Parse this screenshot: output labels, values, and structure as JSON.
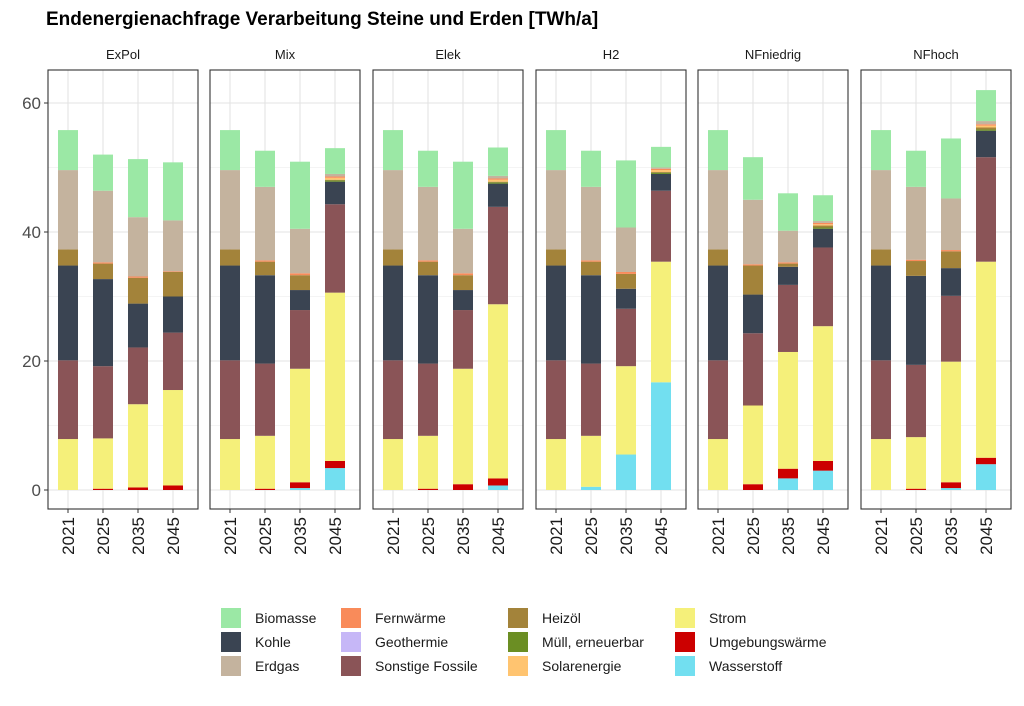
{
  "chart_data": {
    "type": "bar",
    "title": "Endenergienachfrage Verarbeitung Steine und Erden [TWh/a]",
    "subtitle": "",
    "xlabel": "",
    "ylabel": "",
    "ylim": [
      0,
      65
    ],
    "yticks": [
      0,
      20,
      40,
      60
    ],
    "grid": true,
    "stacked": true,
    "legend_position": "bottom",
    "categories": [
      "2021",
      "2025",
      "2035",
      "2045"
    ],
    "legend": {
      "items": [
        {
          "name": "Biomasse",
          "color": "#9be8a5"
        },
        {
          "name": "Kohle",
          "color": "#3a4452"
        },
        {
          "name": "Erdgas",
          "color": "#c4b39e"
        },
        {
          "name": "Fernwärme",
          "color": "#f98b5a"
        },
        {
          "name": "Geothermie",
          "color": "#c6b7f7"
        },
        {
          "name": "Sonstige Fossile",
          "color": "#8a5457"
        },
        {
          "name": "Heizöl",
          "color": "#a3833a"
        },
        {
          "name": "Müll, erneuerbar",
          "color": "#6b8e23"
        },
        {
          "name": "Solarenergie",
          "color": "#ffc470"
        },
        {
          "name": "Strom",
          "color": "#f5f07a"
        },
        {
          "name": "Umgebungswärme",
          "color": "#cc0000"
        },
        {
          "name": "Wasserstoff",
          "color": "#72dff0"
        }
      ]
    },
    "stack_order": [
      "Wasserstoff",
      "Umgebungswärme",
      "Strom",
      "Sonstige Fossile",
      "Kohle",
      "Müll, erneuerbar",
      "Heizöl",
      "Solarenergie",
      "Geothermie",
      "Fernwärme",
      "Erdgas",
      "Biomasse"
    ],
    "panels": [
      {
        "name": "ExPol",
        "bars": [
          {
            "Strom": 7.9,
            "Sonstige Fossile": 12.2,
            "Kohle": 14.7,
            "Heizöl": 2.5,
            "Erdgas": 12.3,
            "Biomasse": 6.2
          },
          {
            "Umgebungswärme": 0.2,
            "Strom": 7.8,
            "Sonstige Fossile": 11.2,
            "Kohle": 13.5,
            "Heizöl": 2.4,
            "Fernwärme": 0.2,
            "Erdgas": 11.1,
            "Biomasse": 5.6
          },
          {
            "Umgebungswärme": 0.4,
            "Strom": 12.9,
            "Sonstige Fossile": 8.8,
            "Kohle": 6.8,
            "Heizöl": 4.0,
            "Fernwärme": 0.2,
            "Erdgas": 9.2,
            "Biomasse": 9.0
          },
          {
            "Umgebungswärme": 0.7,
            "Strom": 14.8,
            "Sonstige Fossile": 8.9,
            "Kohle": 5.6,
            "Heizöl": 3.8,
            "Fernwärme": 0.1,
            "Erdgas": 7.9,
            "Biomasse": 9.0
          }
        ]
      },
      {
        "name": "Mix",
        "bars": [
          {
            "Strom": 7.9,
            "Sonstige Fossile": 12.2,
            "Kohle": 14.7,
            "Heizöl": 2.5,
            "Erdgas": 12.3,
            "Biomasse": 6.2
          },
          {
            "Umgebungswärme": 0.2,
            "Strom": 8.2,
            "Sonstige Fossile": 11.2,
            "Kohle": 13.7,
            "Heizöl": 2.1,
            "Fernwärme": 0.2,
            "Erdgas": 11.4,
            "Biomasse": 5.6
          },
          {
            "Wasserstoff": 0.3,
            "Umgebungswärme": 0.9,
            "Strom": 17.6,
            "Sonstige Fossile": 9.1,
            "Kohle": 3.1,
            "Heizöl": 2.3,
            "Fernwärme": 0.3,
            "Erdgas": 6.9,
            "Biomasse": 10.4
          },
          {
            "Wasserstoff": 3.4,
            "Umgebungswärme": 1.1,
            "Strom": 26.1,
            "Sonstige Fossile": 13.7,
            "Kohle": 3.5,
            "Müll, erneuerbar": 0.2,
            "Heizöl": 0.1,
            "Solarenergie": 0.3,
            "Fernwärme": 0.2,
            "Erdgas": 0.4,
            "Biomasse": 4.0
          }
        ]
      },
      {
        "name": "Elek",
        "bars": [
          {
            "Strom": 7.9,
            "Sonstige Fossile": 12.2,
            "Kohle": 14.7,
            "Heizöl": 2.5,
            "Erdgas": 12.3,
            "Biomasse": 6.2
          },
          {
            "Umgebungswärme": 0.2,
            "Strom": 8.2,
            "Sonstige Fossile": 11.2,
            "Kohle": 13.7,
            "Heizöl": 2.1,
            "Fernwärme": 0.2,
            "Erdgas": 11.4,
            "Biomasse": 5.6
          },
          {
            "Umgebungswärme": 0.9,
            "Strom": 17.9,
            "Sonstige Fossile": 9.1,
            "Kohle": 3.1,
            "Heizöl": 2.3,
            "Fernwärme": 0.3,
            "Erdgas": 6.9,
            "Biomasse": 10.4
          },
          {
            "Wasserstoff": 0.7,
            "Umgebungswärme": 1.1,
            "Strom": 27.0,
            "Sonstige Fossile": 15.1,
            "Kohle": 3.6,
            "Müll, erneuerbar": 0.2,
            "Heizöl": 0.1,
            "Solarenergie": 0.3,
            "Fernwärme": 0.2,
            "Erdgas": 0.4,
            "Biomasse": 4.4
          }
        ]
      },
      {
        "name": "H2",
        "bars": [
          {
            "Strom": 7.9,
            "Sonstige Fossile": 12.2,
            "Kohle": 14.7,
            "Heizöl": 2.5,
            "Erdgas": 12.3,
            "Biomasse": 6.2
          },
          {
            "Wasserstoff": 0.5,
            "Strom": 7.9,
            "Sonstige Fossile": 11.2,
            "Kohle": 13.7,
            "Heizöl": 2.1,
            "Fernwärme": 0.2,
            "Erdgas": 11.4,
            "Biomasse": 5.6
          },
          {
            "Wasserstoff": 5.5,
            "Strom": 13.7,
            "Sonstige Fossile": 8.9,
            "Kohle": 3.1,
            "Heizöl": 2.3,
            "Fernwärme": 0.3,
            "Erdgas": 6.9,
            "Biomasse": 10.4
          },
          {
            "Wasserstoff": 16.7,
            "Strom": 18.7,
            "Sonstige Fossile": 11.0,
            "Kohle": 2.6,
            "Müll, erneuerbar": 0.2,
            "Heizöl": 0.1,
            "Solarenergie": 0.3,
            "Fernwärme": 0.2,
            "Erdgas": 0.2,
            "Biomasse": 3.2
          }
        ]
      },
      {
        "name": "NFniedrig",
        "bars": [
          {
            "Strom": 7.9,
            "Sonstige Fossile": 12.2,
            "Kohle": 14.7,
            "Heizöl": 2.5,
            "Erdgas": 12.3,
            "Biomasse": 6.2
          },
          {
            "Umgebungswärme": 0.9,
            "Strom": 12.2,
            "Sonstige Fossile": 11.2,
            "Kohle": 6.0,
            "Heizöl": 4.5,
            "Fernwärme": 0.2,
            "Erdgas": 10.0,
            "Biomasse": 6.6
          },
          {
            "Wasserstoff": 1.8,
            "Umgebungswärme": 1.5,
            "Strom": 18.1,
            "Sonstige Fossile": 10.4,
            "Kohle": 2.8,
            "Heizöl": 0.5,
            "Fernwärme": 0.2,
            "Erdgas": 4.9,
            "Biomasse": 5.8
          },
          {
            "Wasserstoff": 3.0,
            "Umgebungswärme": 1.5,
            "Strom": 20.9,
            "Sonstige Fossile": 12.2,
            "Kohle": 2.9,
            "Müll, erneuerbar": 0.2,
            "Heizöl": 0.3,
            "Solarenergie": 0.2,
            "Fernwärme": 0.2,
            "Erdgas": 0.3,
            "Biomasse": 4.0
          }
        ]
      },
      {
        "name": "NFhoch",
        "bars": [
          {
            "Strom": 7.9,
            "Sonstige Fossile": 12.2,
            "Kohle": 14.7,
            "Heizöl": 2.5,
            "Erdgas": 12.3,
            "Biomasse": 6.2
          },
          {
            "Umgebungswärme": 0.2,
            "Strom": 8.0,
            "Sonstige Fossile": 11.2,
            "Kohle": 13.8,
            "Heizöl": 2.3,
            "Fernwärme": 0.2,
            "Erdgas": 11.3,
            "Biomasse": 5.6
          },
          {
            "Wasserstoff": 0.3,
            "Umgebungswärme": 0.9,
            "Strom": 18.7,
            "Sonstige Fossile": 10.2,
            "Kohle": 4.3,
            "Heizöl": 2.6,
            "Fernwärme": 0.2,
            "Erdgas": 8.0,
            "Biomasse": 9.3
          },
          {
            "Wasserstoff": 4.0,
            "Umgebungswärme": 1.0,
            "Strom": 30.4,
            "Sonstige Fossile": 16.2,
            "Kohle": 4.1,
            "Müll, erneuerbar": 0.2,
            "Heizöl": 0.3,
            "Solarenergie": 0.3,
            "Fernwärme": 0.2,
            "Erdgas": 0.5,
            "Biomasse": 4.8
          }
        ]
      }
    ]
  }
}
